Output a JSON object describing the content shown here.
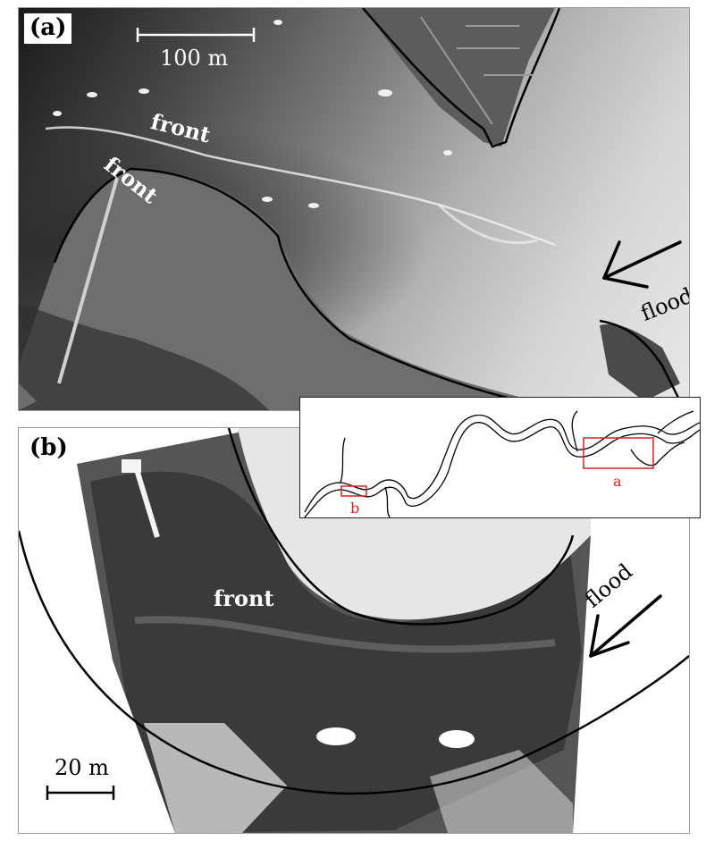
{
  "panel_a": {
    "label": "(a)",
    "scale_text": "100 m",
    "front_label_1": "front",
    "front_label_2": "front",
    "flood_label": "flood"
  },
  "panel_b": {
    "label": "(b)",
    "scale_text": "20 m",
    "front_label": "front",
    "flood_label": "flood"
  },
  "inset": {
    "label_a": "a",
    "label_b": "b",
    "marker_color": "#d92020"
  }
}
